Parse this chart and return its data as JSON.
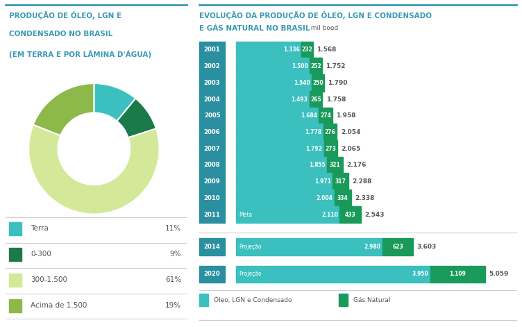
{
  "pie_title_line1": "PRODUÇÃO DE ÓLEO, LGN E",
  "pie_title_line2": "CONDENSADO NO BRASIL",
  "pie_title_line3": "(EM TERRA E POR LÂMINA D'ÁGUA)",
  "pie_labels": [
    "Terra",
    "0-300",
    "300-1.500",
    "Acima de 1.500"
  ],
  "pie_values": [
    11,
    9,
    61,
    19
  ],
  "pie_colors": [
    "#3bbfbf",
    "#1a7a4a",
    "#d4e89a",
    "#8db84a"
  ],
  "pie_pcts": [
    "11%",
    "9%",
    "61%",
    "19%"
  ],
  "bar_title_line1": "EVOLUÇÃO DA PRODUÇÃO DE ÓLEO, LGN E CONDENSADO",
  "bar_title_line2": "E GÁS NATURAL NO BRASIL",
  "bar_title_unit": "  mil boed",
  "bar_color_oil": "#3bbfbf",
  "bar_color_gas": "#1a9a5a",
  "bar_color_label_bg": "#2a8fa0",
  "rows": [
    {
      "year": "2001",
      "label": "",
      "oil": 1336,
      "gas": 232,
      "total": "1.568"
    },
    {
      "year": "2002",
      "label": "",
      "oil": 1500,
      "gas": 252,
      "total": "1.752"
    },
    {
      "year": "2003",
      "label": "",
      "oil": 1540,
      "gas": 250,
      "total": "1.790"
    },
    {
      "year": "2004",
      "label": "",
      "oil": 1493,
      "gas": 265,
      "total": "1.758"
    },
    {
      "year": "2005",
      "label": "",
      "oil": 1684,
      "gas": 274,
      "total": "1.958"
    },
    {
      "year": "2006",
      "label": "",
      "oil": 1778,
      "gas": 276,
      "total": "2.054"
    },
    {
      "year": "2007",
      "label": "",
      "oil": 1792,
      "gas": 273,
      "total": "2.065"
    },
    {
      "year": "2008",
      "label": "",
      "oil": 1855,
      "gas": 321,
      "total": "2.176"
    },
    {
      "year": "2009",
      "label": "",
      "oil": 1971,
      "gas": 317,
      "total": "2.288"
    },
    {
      "year": "2010",
      "label": "",
      "oil": 2004,
      "gas": 334,
      "total": "2.338"
    },
    {
      "year": "2011",
      "label": "Meta",
      "oil": 2110,
      "gas": 433,
      "total": "2.543"
    }
  ],
  "proj_rows": [
    {
      "year": "2014",
      "label": "Projeção",
      "oil": 2980,
      "gas": 623,
      "total": "3.603"
    },
    {
      "year": "2020",
      "label": "Projeção",
      "oil": 3950,
      "gas": 1109,
      "total": "5.059"
    }
  ],
  "legend_oil": "Óleo, LGN e Condensado",
  "legend_gas": "Gás Natural",
  "bg_color": "#ffffff",
  "title_color": "#3a9ab5",
  "text_color": "#555555",
  "divider_color": "#cccccc"
}
